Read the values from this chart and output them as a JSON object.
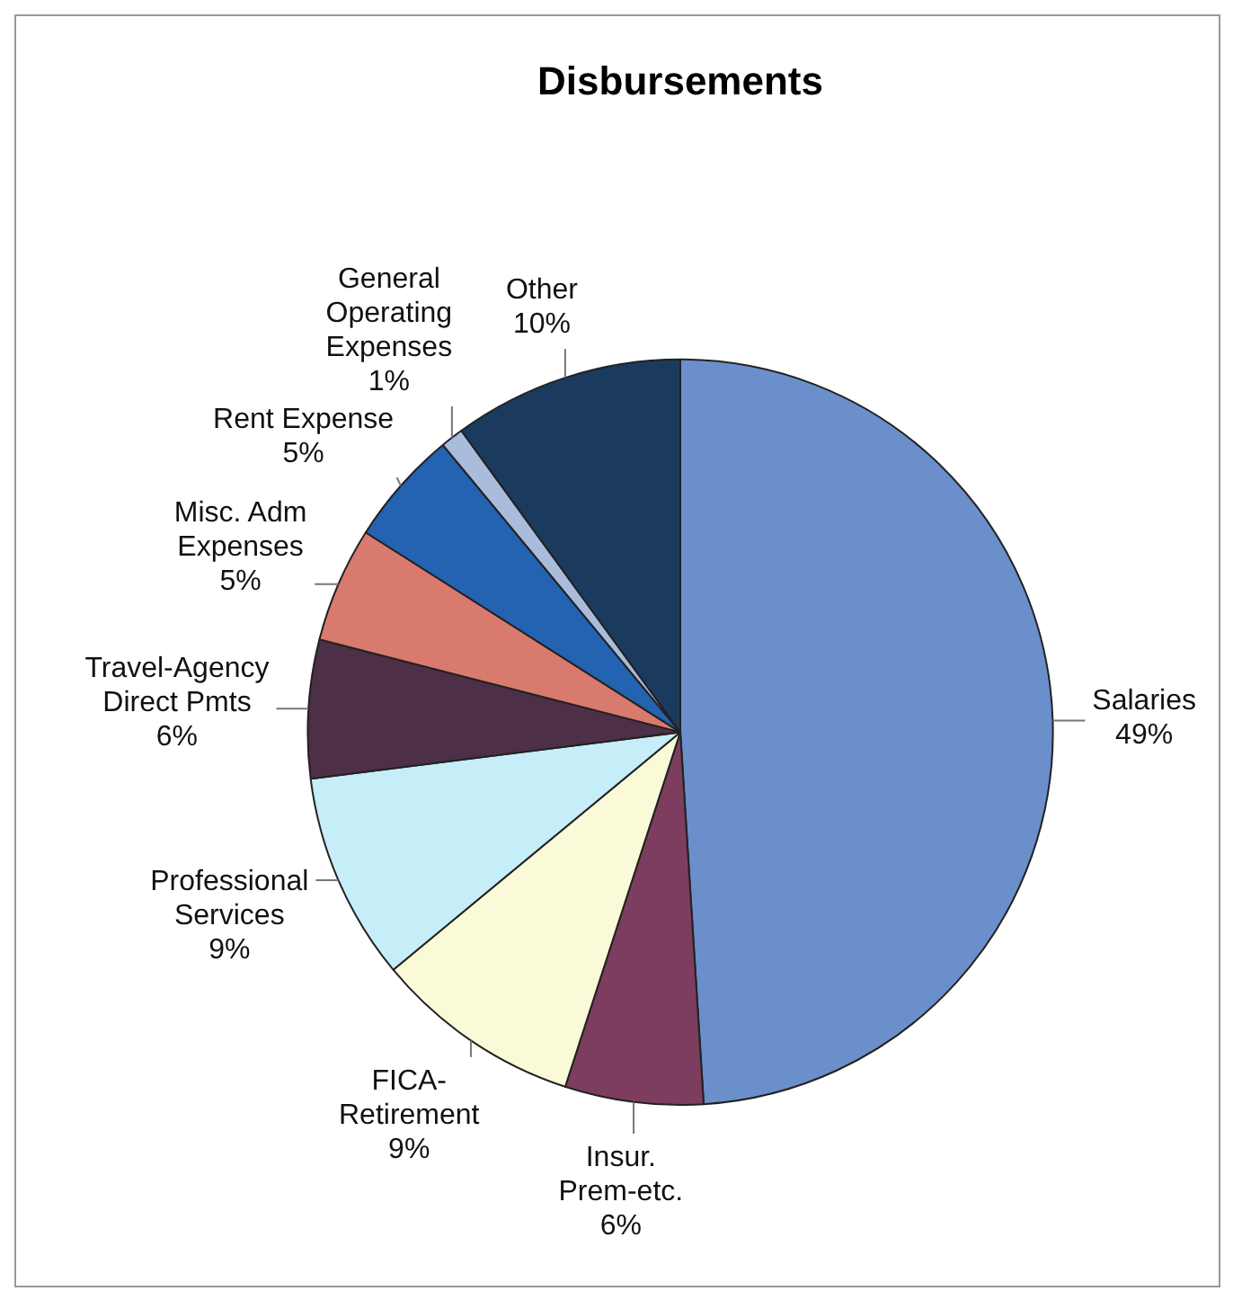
{
  "chart_data": {
    "type": "pie",
    "title": "Disbursements",
    "categories": [
      "Salaries",
      "Insur. Prem-etc.",
      "FICA-Retirement",
      "Professional Services",
      "Travel-Agency Direct Pmts",
      "Misc. Adm Expenses",
      "Rent Expense",
      "General Operating Expenses",
      "Other"
    ],
    "values": [
      49,
      6,
      9,
      9,
      6,
      5,
      5,
      1,
      10
    ],
    "value_labels": [
      "49%",
      "6%",
      "9%",
      "9%",
      "6%",
      "5%",
      "5%",
      "1%",
      "10%"
    ],
    "colors": [
      "#6b8fcb",
      "#7d3d5e",
      "#fbfad8",
      "#c6eef8",
      "#4d2f47",
      "#d97a6e",
      "#2462b2",
      "#a9bcdc",
      "#1b3b5e"
    ],
    "legend": false
  }
}
